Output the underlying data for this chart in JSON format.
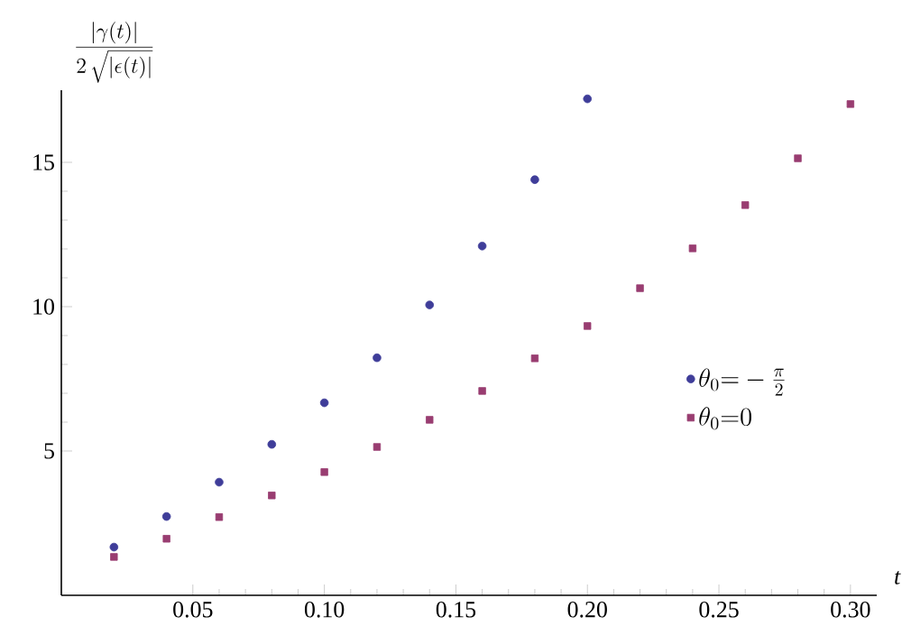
{
  "chart_data": {
    "type": "scatter",
    "ylabel": "\\frac{|\\gamma(t)|}{2\\,\\sqrt{|\\epsilon(t)|}}",
    "xlabel": "t",
    "x": [
      0.02,
      0.04,
      0.06,
      0.08,
      0.1,
      0.12,
      0.14,
      0.16,
      0.18,
      0.2,
      0.22,
      0.24,
      0.26,
      0.28,
      0.3
    ],
    "series": [
      {
        "name": "\\theta_0{=}-\\frac{\\pi}{2}",
        "color": "#3f3d99",
        "marker": "circle",
        "values": [
          1.67,
          2.73,
          3.92,
          5.23,
          6.67,
          8.23,
          10.06,
          12.1,
          14.4,
          17.2,
          null,
          null,
          null,
          null,
          null
        ]
      },
      {
        "name": "\\theta_0{=}0",
        "color": "#993d71",
        "marker": "square",
        "values": [
          1.33,
          1.96,
          2.71,
          3.46,
          4.27,
          5.14,
          6.08,
          7.08,
          8.21,
          9.33,
          10.64,
          12.02,
          13.52,
          15.14,
          17.02
        ]
      }
    ],
    "xlim": [
      0,
      0.31
    ],
    "ylim": [
      0,
      17.5
    ],
    "xticks": [
      {
        "value": 0.05,
        "label": "0.05"
      },
      {
        "value": 0.1,
        "label": "0.10"
      },
      {
        "value": 0.15,
        "label": "0.15"
      },
      {
        "value": 0.2,
        "label": "0.20"
      },
      {
        "value": 0.25,
        "label": "0.25"
      },
      {
        "value": 0.3,
        "label": "0.30"
      }
    ],
    "yticks": [
      5,
      10,
      15
    ],
    "legend": "right"
  }
}
